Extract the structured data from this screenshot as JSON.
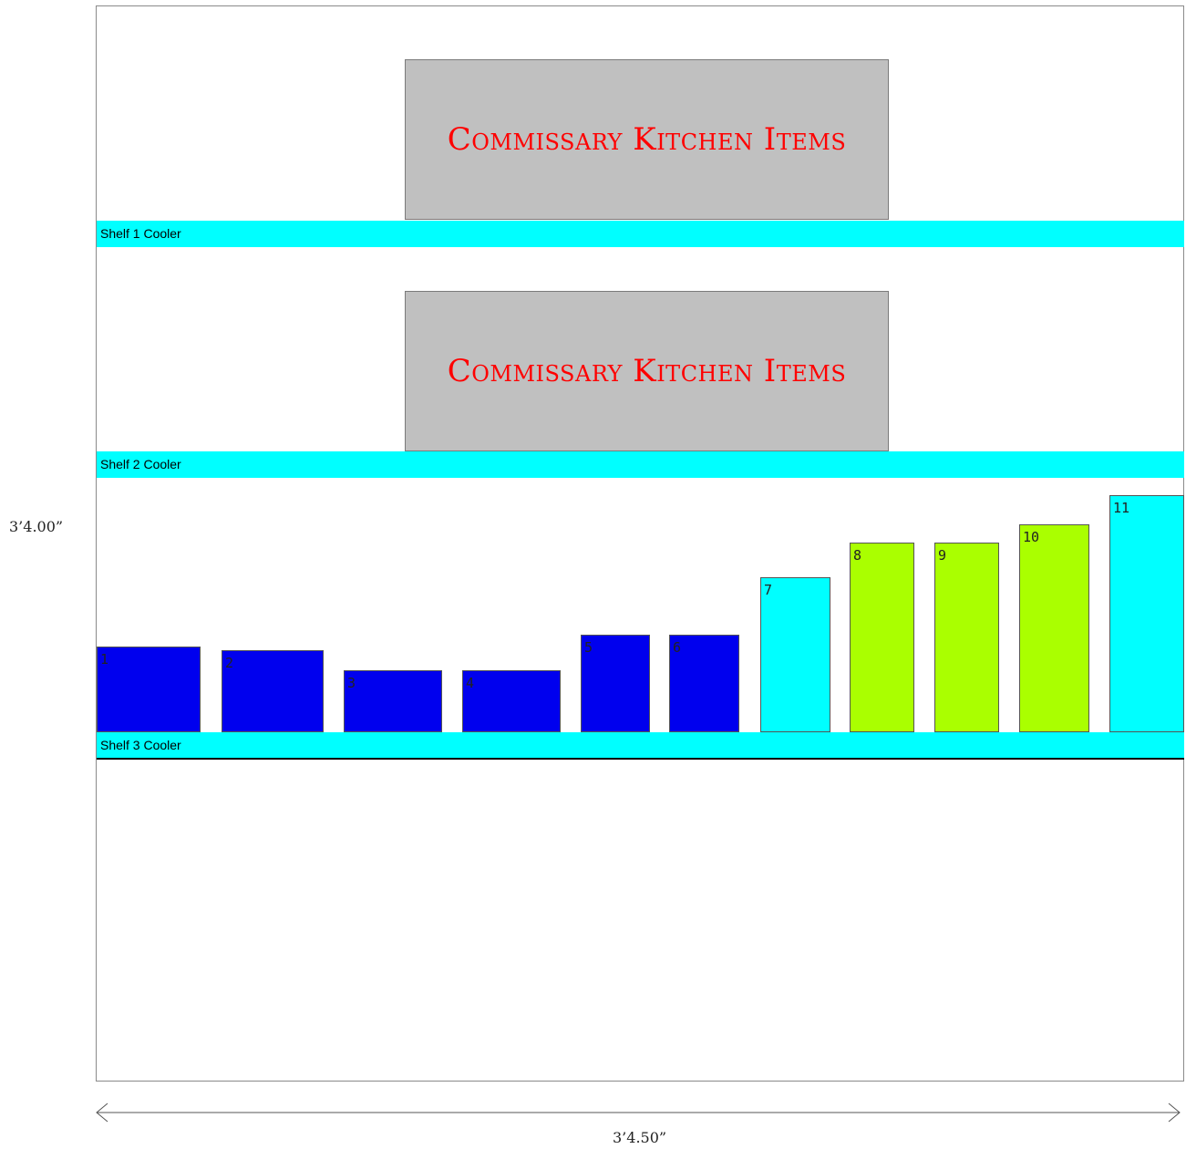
{
  "dimensions": {
    "height_label": "3’4.00”",
    "width_label": "3’4.50”"
  },
  "shelves": [
    {
      "label": "Shelf 1 Cooler"
    },
    {
      "label": "Shelf 2 Cooler"
    },
    {
      "label": "Shelf 3 Cooler"
    }
  ],
  "commissary": [
    {
      "label": "Commissary Kitchen Items"
    },
    {
      "label": "Commissary Kitchen Items"
    }
  ],
  "products": [
    {
      "label": "1",
      "color": "#0000ee"
    },
    {
      "label": "2",
      "color": "#0000ee"
    },
    {
      "label": "3",
      "color": "#0000ee"
    },
    {
      "label": "4",
      "color": "#0000ee"
    },
    {
      "label": "5",
      "color": "#0000ee"
    },
    {
      "label": "6",
      "color": "#0000ee"
    },
    {
      "label": "7",
      "color": "#00ffff"
    },
    {
      "label": "8",
      "color": "#aaff00"
    },
    {
      "label": "9",
      "color": "#aaff00"
    },
    {
      "label": "10",
      "color": "#aaff00"
    },
    {
      "label": "11",
      "color": "#00ffff"
    }
  ]
}
